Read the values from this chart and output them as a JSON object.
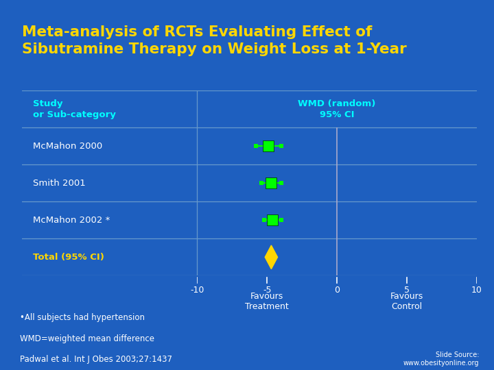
{
  "title": "Meta-analysis of RCTs Evaluating Effect of\nSibutramine Therapy on Weight Loss at 1-Year",
  "title_color": "#FFD700",
  "bg_outer": "#1E5FBF",
  "bg_table_header": "#1040A0",
  "bg_row_dark": "#000055",
  "bg_row_light": "#000077",
  "bg_total_row": "#000088",
  "table_line_color": "#6699CC",
  "col1_header": "Study\nor Sub-category",
  "col2_header": "WMD (random)\n95% CI",
  "studies": [
    "McMahon 2000",
    "Smith 2001",
    "McMahon 2002 *"
  ],
  "study_wmd": [
    -4.9,
    -4.7,
    -4.6
  ],
  "study_ci_low": [
    -5.8,
    -5.4,
    -5.2
  ],
  "study_ci_high": [
    -4.0,
    -4.0,
    -4.0
  ],
  "total_label": "Total (95% CI)",
  "total_wmd": -4.7,
  "total_ci_low": -5.15,
  "total_ci_high": -4.25,
  "xmin": -10,
  "xmax": 10,
  "xticks": [
    -10,
    -5,
    0,
    5,
    10
  ],
  "favours_treatment": "Favours\nTreatment",
  "favours_control": "Favours\nControl",
  "footer_left1": "•All subjects had hypertension",
  "footer_left2": "WMD=weighted mean difference",
  "footer_ref": "Padwal et al. Int J Obes 2003;27:1437",
  "footer_source": "Slide Source:\nwww.obesityonline.org",
  "header_text_color": "#00FFFF",
  "study_text_color": "#FFFFFF",
  "total_text_color": "#FFD700",
  "footer_text_color": "#FFFFFF",
  "axis_text_color": "#FFFFFF",
  "marker_color": "#00FF00",
  "total_marker_color": "#FFD700",
  "zero_line_color": "#AAAACC"
}
